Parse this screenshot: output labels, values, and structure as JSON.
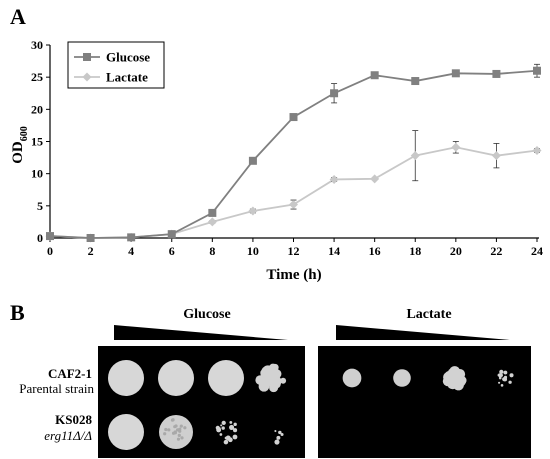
{
  "panel_a": {
    "letter": "A"
  },
  "panel_b": {
    "letter": "B"
  },
  "chart_data": {
    "type": "line",
    "xlabel": "Time (h)",
    "ylabel": "OD",
    "ylabel_subscript": "600",
    "xlim": [
      0,
      24
    ],
    "ylim": [
      0,
      30
    ],
    "x_ticks": [
      0,
      2,
      4,
      6,
      8,
      10,
      12,
      14,
      16,
      18,
      20,
      22,
      24
    ],
    "y_ticks": [
      0,
      5,
      10,
      15,
      20,
      25,
      30
    ],
    "grid": false,
    "legend_position": "top-left",
    "x": [
      0,
      2,
      4,
      6,
      8,
      10,
      12,
      14,
      16,
      18,
      20,
      22,
      24
    ],
    "series": [
      {
        "name": "Glucose",
        "color": "#808080",
        "marker": "square",
        "values": [
          0.3,
          0.0,
          0.1,
          0.6,
          3.9,
          12.0,
          18.8,
          22.5,
          25.3,
          24.4,
          25.6,
          25.5,
          26.0
        ],
        "error": [
          0,
          0,
          0,
          0,
          0.2,
          0.3,
          0.3,
          1.5,
          0,
          0,
          0,
          0,
          1.0
        ]
      },
      {
        "name": "Lactate",
        "color": "#c8c8c8",
        "marker": "diamond",
        "values": [
          0.3,
          0.0,
          0.1,
          0.6,
          2.5,
          4.2,
          5.2,
          9.1,
          9.2,
          12.8,
          14.1,
          12.8,
          13.6
        ],
        "error": [
          0,
          0,
          0,
          0,
          0.2,
          0.3,
          0.7,
          0.3,
          0,
          3.9,
          0.9,
          1.9,
          0.3
        ]
      }
    ]
  },
  "spot_assay": {
    "plates": [
      {
        "title": "Glucose"
      },
      {
        "title": "Lactate"
      }
    ],
    "strains": [
      {
        "name": "CAF2-1",
        "description": "Parental strain",
        "description_style": "normal"
      },
      {
        "name": "KS028",
        "description": "erg11Δ/Δ",
        "description_style": "italic"
      }
    ],
    "growth": {
      "Glucose": [
        [
          1.0,
          1.0,
          1.0,
          0.55
        ],
        [
          1.0,
          0.9,
          0.45,
          0.12
        ]
      ],
      "Lactate": [
        [
          0.85,
          0.8,
          0.6,
          0.35
        ],
        [
          0,
          0,
          0,
          0
        ]
      ]
    }
  }
}
